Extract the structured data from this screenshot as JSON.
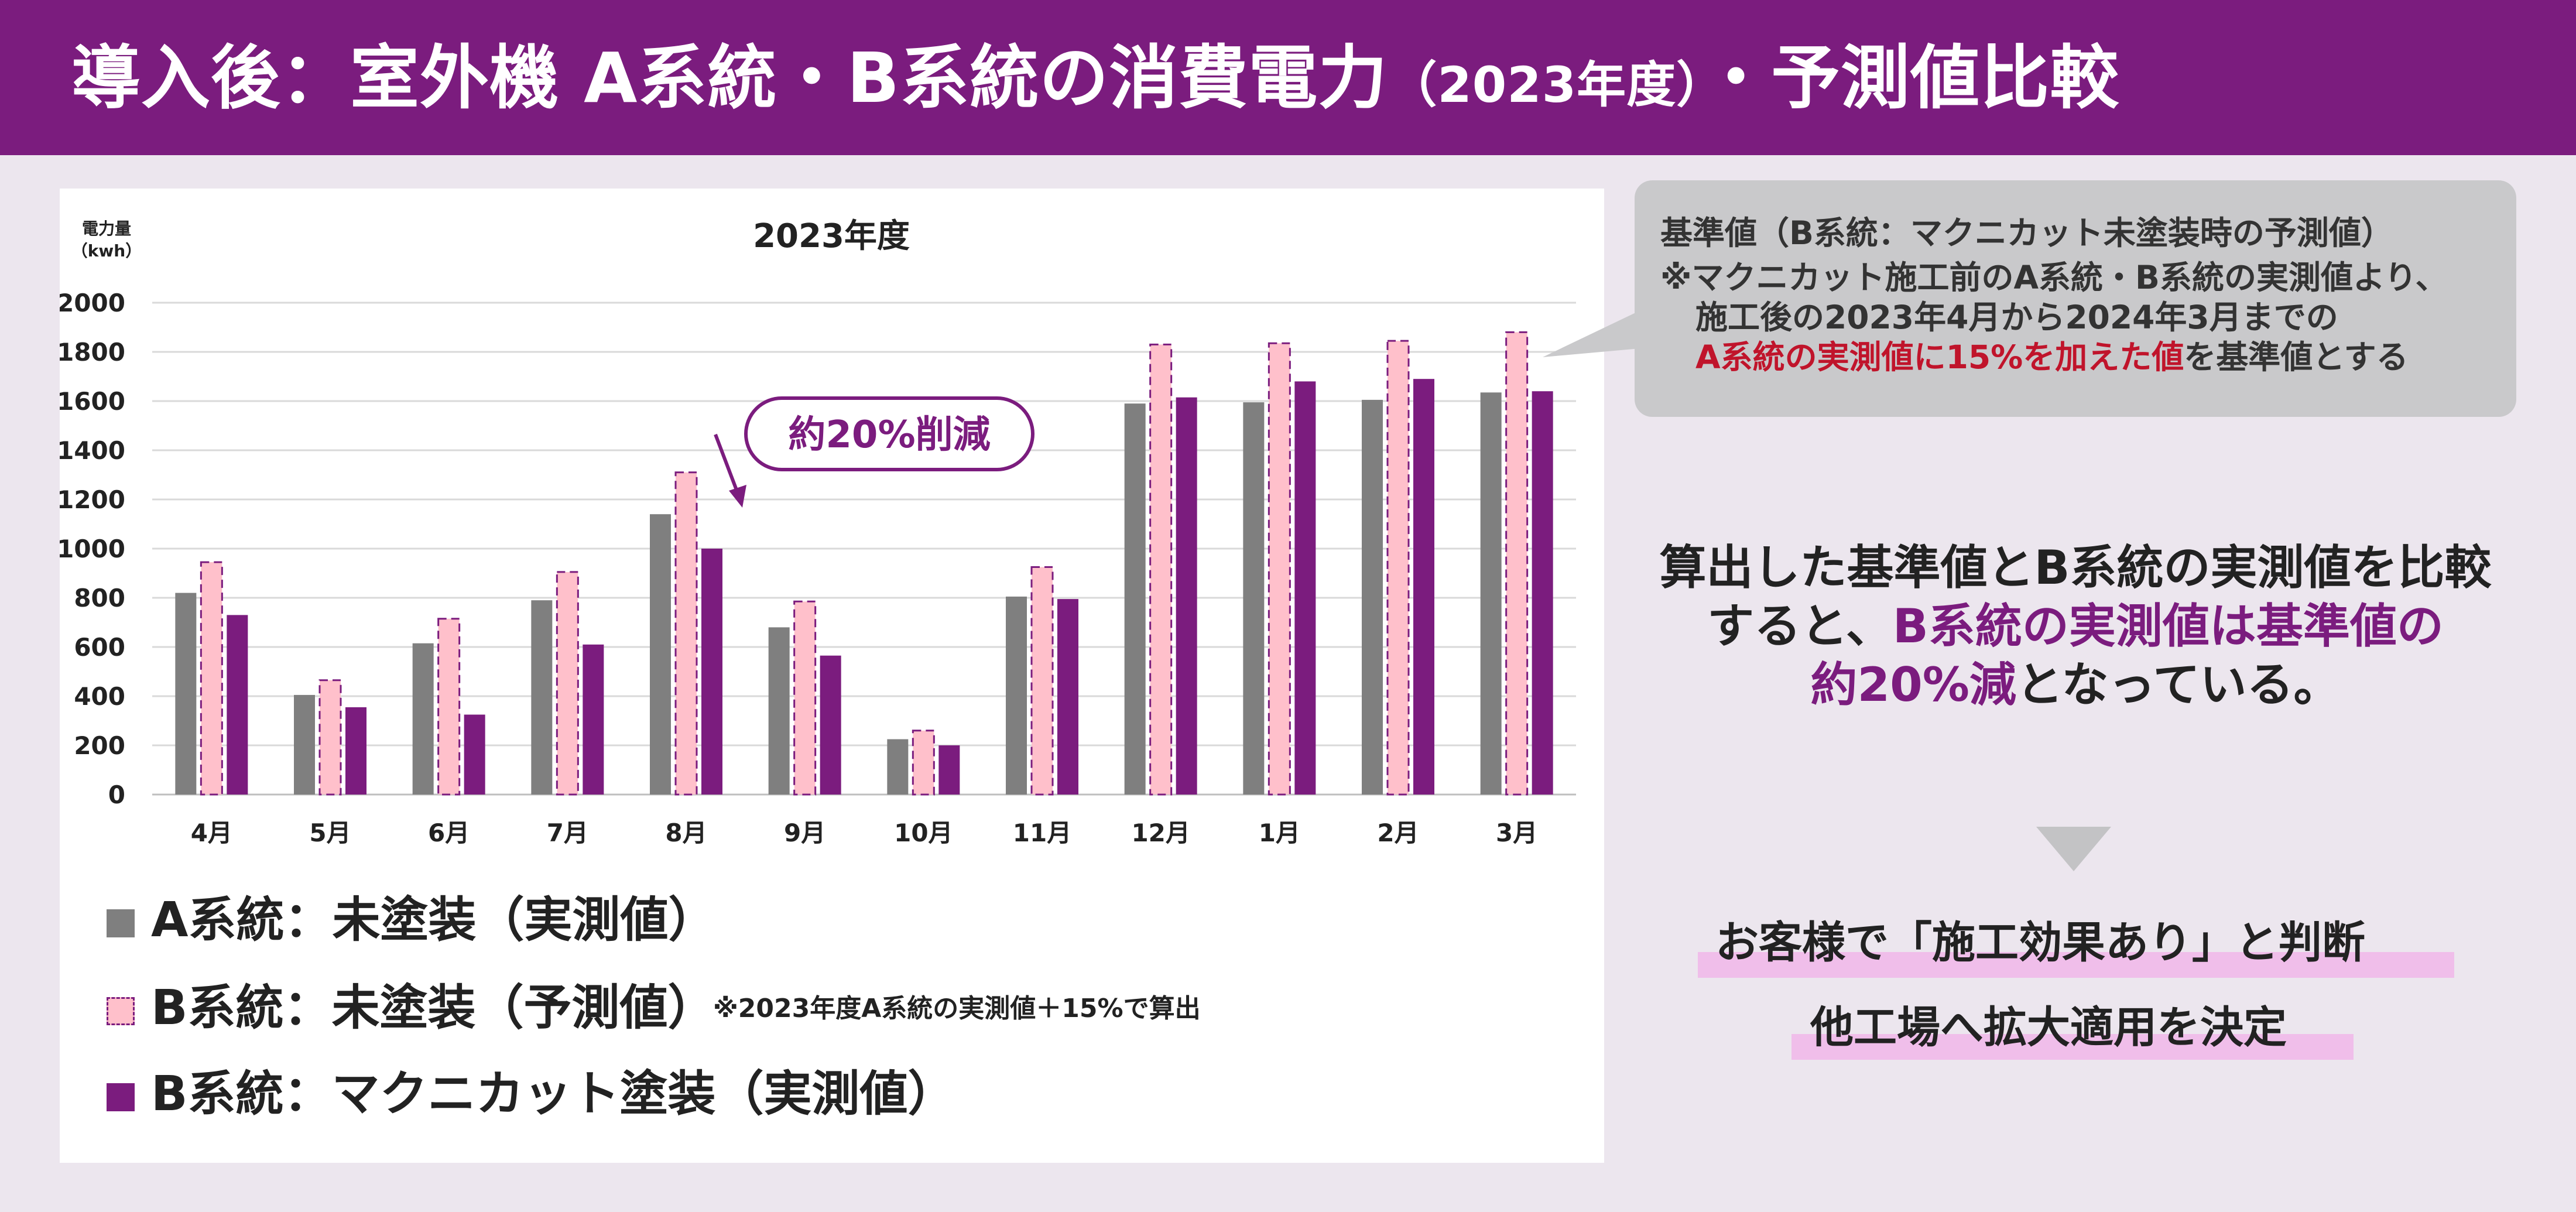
{
  "header": {
    "title_main": "導入後：室外機 A系統・B系統の消費電力",
    "title_year": "（2023年度）",
    "title_tail": "・予測値比較"
  },
  "chart_data": {
    "type": "bar",
    "title": "2023年度",
    "ylabel": "電力量",
    "yunit": "（kwh）",
    "ylim": [
      0,
      2000
    ],
    "yticks": [
      0,
      200,
      400,
      600,
      800,
      1000,
      1200,
      1400,
      1600,
      1800,
      2000
    ],
    "grid": true,
    "categories": [
      "4月",
      "5月",
      "6月",
      "7月",
      "8月",
      "9月",
      "10月",
      "11月",
      "12月",
      "1月",
      "2月",
      "3月"
    ],
    "series": [
      {
        "name": "A系統：未塗装（実測値）",
        "color": "#7F7F7F",
        "values": [
          820,
          405,
          615,
          790,
          1140,
          680,
          225,
          805,
          1590,
          1595,
          1605,
          1635
        ]
      },
      {
        "name": "B系統：未塗装（予測値）",
        "color": "#FFC0CB",
        "border": "#7B1C7E",
        "values": [
          945,
          465,
          715,
          905,
          1310,
          785,
          260,
          925,
          1830,
          1835,
          1845,
          1880
        ]
      },
      {
        "name": "B系統：マクニカット塗装（実測値）",
        "color": "#7B1C7E",
        "values": [
          730,
          355,
          325,
          610,
          1000,
          565,
          200,
          795,
          1615,
          1680,
          1690,
          1640
        ]
      }
    ],
    "annotation": "約20%削減"
  },
  "legend": {
    "note": "※2023年度A系統の実測値＋15%で算出"
  },
  "callout": {
    "line1": "基準値（B系統：マクニカット未塗装時の予測値）",
    "line2": "※マクニカット施工前のA系統・B系統の実測値より、",
    "line3": "施工後の2023年4月から2024年3月までの",
    "line4_red": "A系統の実測値に15%を加えた値",
    "line4_tail": "を基準値とする"
  },
  "conclusion": {
    "line1": "算出した基準値とB系統の実測値を比較",
    "line2_a": "すると、",
    "line2_b": "B系統の実測値は基準値の",
    "line3_a": "約20%減",
    "line3_b": "となっている。"
  },
  "result": {
    "line1": "お客様で「施工効果あり」と判断",
    "line2": "他工場へ拡大適用を決定"
  }
}
